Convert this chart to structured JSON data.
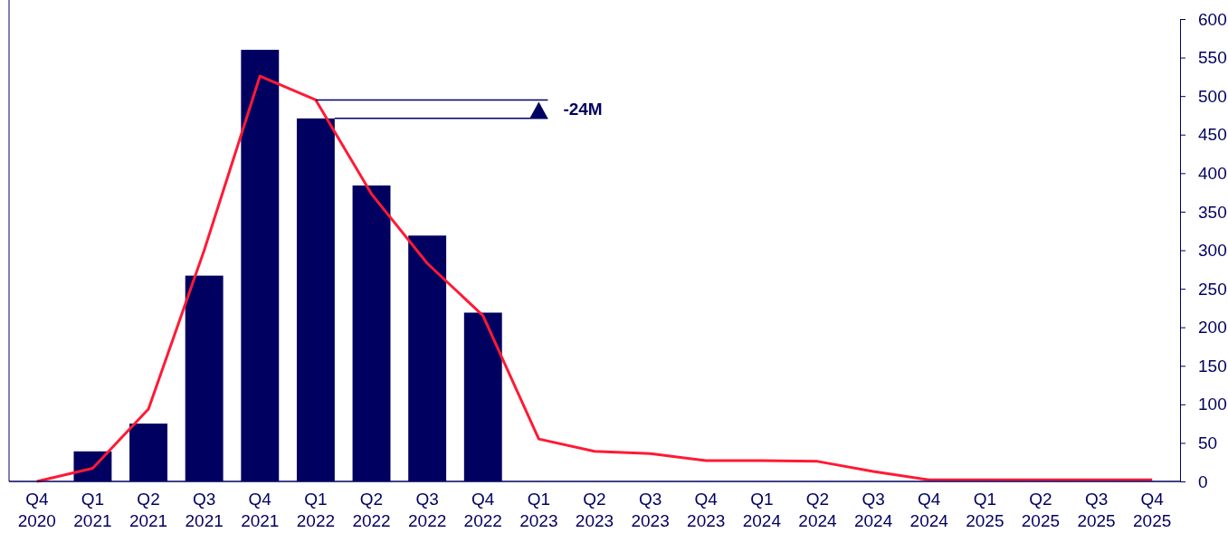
{
  "chart_data": {
    "type": "bar",
    "categories": [
      "Q4 2020",
      "Q1 2021",
      "Q2 2021",
      "Q3 2021",
      "Q4 2021",
      "Q1 2022",
      "Q2 2022",
      "Q3 2022",
      "Q4 2022",
      "Q1 2023",
      "Q2 2023",
      "Q3 2023",
      "Q4 2023",
      "Q1 2024",
      "Q2 2024",
      "Q3 2024",
      "Q4 2024",
      "Q1 2025",
      "Q2 2025",
      "Q3 2025",
      "Q4 2025"
    ],
    "series": [
      {
        "color": "#000060",
        "values": [
          null,
          39,
          75,
          267,
          560,
          471,
          384,
          319,
          219,
          null,
          null,
          null,
          null,
          null,
          null,
          null,
          null,
          null,
          null,
          null,
          null
        ]
      },
      {
        "type": "line",
        "color": "#ff1a35",
        "values": [
          0,
          17,
          94,
          300,
          526,
          495,
          373,
          283,
          215,
          55,
          39,
          36,
          27,
          27,
          26,
          13,
          2,
          2,
          2,
          2,
          2
        ]
      }
    ],
    "ylim": [
      0,
      600
    ],
    "yticks": [
      0,
      50,
      100,
      150,
      200,
      250,
      300,
      350,
      400,
      450,
      500,
      550,
      600
    ],
    "annotations": [
      {
        "text": "-24M",
        "x": "Q1 2023",
        "y": 483
      }
    ],
    "grid": false,
    "marker": "none",
    "line_style": "solid"
  }
}
